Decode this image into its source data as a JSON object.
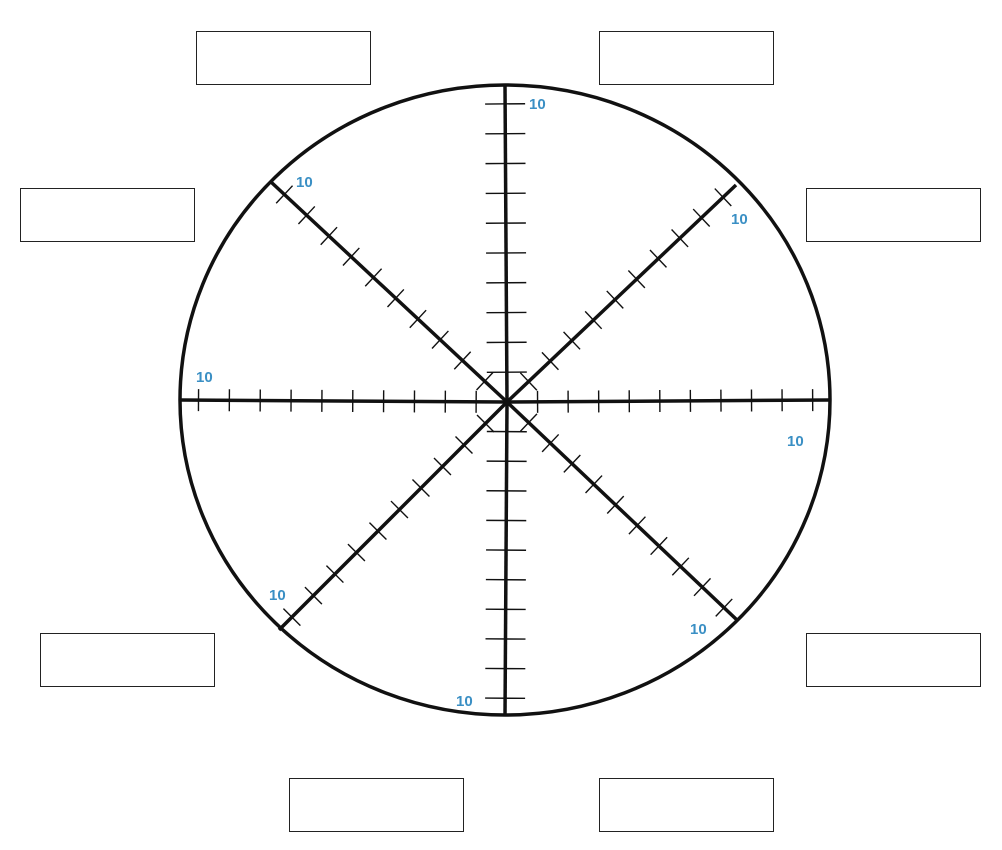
{
  "wheel": {
    "max_label": "10",
    "ticks_per_spoke": 10,
    "spokes": [
      {
        "id": "north",
        "max_label": "10"
      },
      {
        "id": "northeast",
        "max_label": "10"
      },
      {
        "id": "east",
        "max_label": "10"
      },
      {
        "id": "southeast",
        "max_label": "10"
      },
      {
        "id": "south",
        "max_label": "10"
      },
      {
        "id": "southwest",
        "max_label": "10"
      },
      {
        "id": "west",
        "max_label": "10"
      },
      {
        "id": "northwest",
        "max_label": "10"
      }
    ]
  },
  "label_boxes": [
    "",
    "",
    "",
    "",
    "",
    "",
    "",
    ""
  ],
  "colors": {
    "line": "#111111",
    "scale_label": "#3a8fc4",
    "box_border": "#222222"
  }
}
